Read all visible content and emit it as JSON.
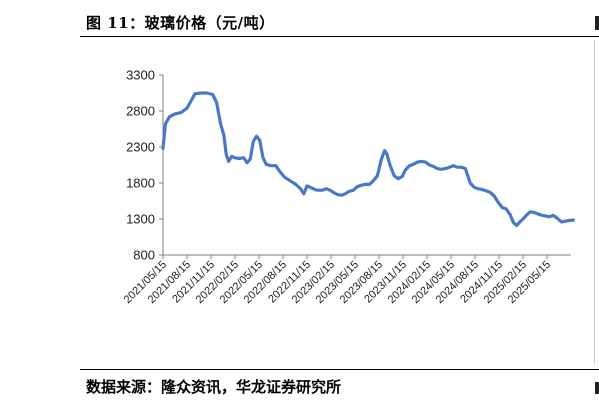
{
  "figure": {
    "title": "图 11：玻璃价格（元/吨）",
    "source": "数据来源：隆众资讯，华龙证券研究所"
  },
  "chart_data": {
    "type": "line",
    "title": "",
    "xlabel": "",
    "ylabel": "",
    "ylim": [
      800,
      3300
    ],
    "yticks": [
      800,
      1300,
      1800,
      2300,
      2800,
      3300
    ],
    "xticks": [
      "2021/05/15",
      "2021/08/15",
      "2021/11/15",
      "2022/02/15",
      "2022/05/15",
      "2022/08/15",
      "2022/11/15",
      "2023/02/15",
      "2023/05/15",
      "2023/08/15",
      "2023/11/15",
      "2024/02/15",
      "2024/05/15",
      "2024/08/15",
      "2024/11/15",
      "2025/02/15",
      "2025/05/15"
    ],
    "line_color": "#4a78c8",
    "grid": false,
    "legend": "none",
    "series": [
      {
        "values": [
          [
            0,
            2280
          ],
          [
            0.3,
            2620
          ],
          [
            0.8,
            2720
          ],
          [
            1.5,
            2760
          ],
          [
            2.3,
            2780
          ],
          [
            3.0,
            2840
          ],
          [
            3.6,
            2960
          ],
          [
            4.0,
            3040
          ],
          [
            4.8,
            3050
          ],
          [
            5.5,
            3050
          ],
          [
            6.2,
            3030
          ],
          [
            6.7,
            2920
          ],
          [
            7.2,
            2620
          ],
          [
            7.6,
            2470
          ],
          [
            7.9,
            2200
          ],
          [
            8.2,
            2100
          ],
          [
            8.6,
            2170
          ],
          [
            9.0,
            2150
          ],
          [
            9.5,
            2140
          ],
          [
            10.1,
            2150
          ],
          [
            10.5,
            2080
          ],
          [
            10.9,
            2130
          ],
          [
            11.3,
            2380
          ],
          [
            11.7,
            2450
          ],
          [
            12.1,
            2390
          ],
          [
            12.5,
            2150
          ],
          [
            12.9,
            2060
          ],
          [
            13.5,
            2040
          ],
          [
            14.1,
            2040
          ],
          [
            14.6,
            1960
          ],
          [
            15.2,
            1880
          ],
          [
            15.9,
            1830
          ],
          [
            16.6,
            1780
          ],
          [
            17.2,
            1720
          ],
          [
            17.6,
            1650
          ],
          [
            18.0,
            1760
          ],
          [
            18.6,
            1730
          ],
          [
            19.2,
            1700
          ],
          [
            19.9,
            1700
          ],
          [
            20.4,
            1720
          ],
          [
            20.9,
            1700
          ],
          [
            21.3,
            1670
          ],
          [
            21.8,
            1640
          ],
          [
            22.3,
            1630
          ],
          [
            22.8,
            1650
          ],
          [
            23.2,
            1680
          ],
          [
            23.8,
            1700
          ],
          [
            24.3,
            1750
          ],
          [
            24.8,
            1770
          ],
          [
            25.3,
            1780
          ],
          [
            25.8,
            1780
          ],
          [
            26.3,
            1830
          ],
          [
            26.8,
            1900
          ],
          [
            27.3,
            2130
          ],
          [
            27.7,
            2250
          ],
          [
            28.0,
            2200
          ],
          [
            28.4,
            2040
          ],
          [
            28.9,
            1900
          ],
          [
            29.4,
            1860
          ],
          [
            29.9,
            1890
          ],
          [
            30.3,
            1980
          ],
          [
            30.8,
            2040
          ],
          [
            31.3,
            2060
          ],
          [
            31.8,
            2090
          ],
          [
            32.3,
            2100
          ],
          [
            32.8,
            2090
          ],
          [
            33.3,
            2050
          ],
          [
            33.8,
            2030
          ],
          [
            34.3,
            2000
          ],
          [
            34.8,
            1990
          ],
          [
            35.3,
            2000
          ],
          [
            35.8,
            2020
          ],
          [
            36.3,
            2040
          ],
          [
            36.8,
            2020
          ],
          [
            37.3,
            2020
          ],
          [
            37.8,
            2000
          ],
          [
            38.4,
            1800
          ],
          [
            38.9,
            1740
          ],
          [
            39.4,
            1720
          ],
          [
            39.9,
            1710
          ],
          [
            40.4,
            1690
          ],
          [
            40.9,
            1670
          ],
          [
            41.4,
            1620
          ],
          [
            41.9,
            1530
          ],
          [
            42.4,
            1460
          ],
          [
            42.9,
            1440
          ],
          [
            43.4,
            1360
          ],
          [
            43.8,
            1250
          ],
          [
            44.2,
            1210
          ],
          [
            44.6,
            1260
          ],
          [
            45.0,
            1300
          ],
          [
            45.5,
            1360
          ],
          [
            45.9,
            1400
          ],
          [
            46.4,
            1390
          ],
          [
            46.9,
            1370
          ],
          [
            47.4,
            1350
          ],
          [
            47.9,
            1340
          ],
          [
            48.3,
            1330
          ],
          [
            48.8,
            1350
          ],
          [
            49.3,
            1310
          ],
          [
            49.8,
            1260
          ],
          [
            50.3,
            1270
          ],
          [
            50.8,
            1280
          ],
          [
            51.3,
            1285
          ]
        ]
      }
    ]
  }
}
